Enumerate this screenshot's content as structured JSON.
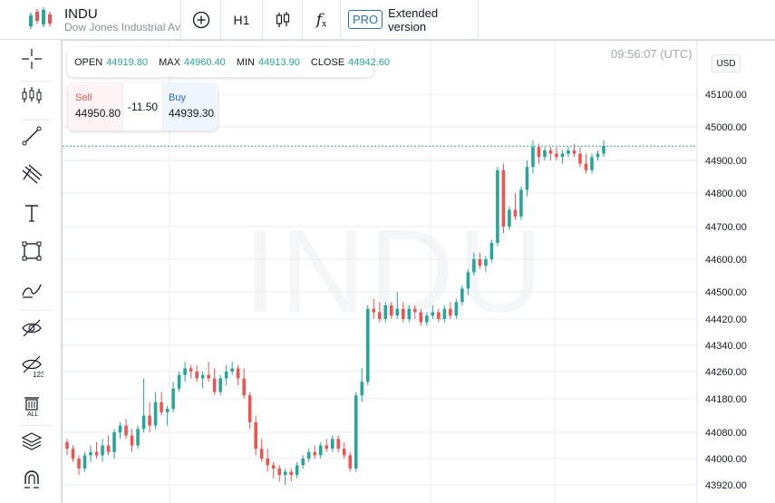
{
  "symbol": {
    "name": "INDU",
    "description": "Dow Jones Industrial Ave"
  },
  "toolbar": {
    "interval": "H1",
    "indicators_label": "f",
    "pro_badge": "PRO",
    "extended_label": "Extended version"
  },
  "left_toolbar": [
    "crosshair-icon",
    "indicator-icon",
    "trend-line-icon",
    "pitchfork-icon",
    "text-icon",
    "rectangle-icon",
    "brush-icon",
    "hide-drawings-icon",
    "hide-indicators-icon",
    "remove-all-icon",
    "layers-icon",
    "magnet-icon"
  ],
  "ohlc": {
    "open_label": "OPEN",
    "open": "44919.80",
    "max_label": "MAX",
    "max": "44960.40",
    "min_label": "MIN",
    "min": "44913.90",
    "close_label": "CLOSE",
    "close": "44942.60"
  },
  "trade": {
    "sell_label": "Sell",
    "sell_price": "44950.80",
    "spread": "-11.50",
    "buy_label": "Buy",
    "buy_price": "44939.30"
  },
  "timestamp": "09:56:07 (UTC)",
  "watermark": "INDU",
  "currency": "USD",
  "colors": {
    "up": "#26a69a",
    "down": "#ef5350",
    "grid": "#e9ebf0",
    "price_line": "#26a69a"
  },
  "chart_data": {
    "type": "candlestick",
    "y_ticks": [
      "45100.00",
      "45000.00",
      "44900.00",
      "44800.00",
      "44700.00",
      "44600.00",
      "44500.00",
      "44420.00",
      "44340.00",
      "44260.00",
      "44180.00",
      "44080.00",
      "44000.00",
      "43920.00"
    ],
    "y_tick_values": [
      45100,
      45000,
      44900,
      44800,
      44700,
      44600,
      44500,
      44420,
      44340,
      44260,
      44180,
      44080,
      44000,
      43920
    ],
    "current_price": 44942.6,
    "candles": [
      [
        44050,
        44060,
        44010,
        44030
      ],
      [
        44030,
        44040,
        43990,
        44000
      ],
      [
        44000,
        44010,
        43950,
        43970
      ],
      [
        43970,
        44020,
        43960,
        44010
      ],
      [
        44010,
        44040,
        43990,
        44020
      ],
      [
        44020,
        44050,
        44000,
        44010
      ],
      [
        44010,
        44060,
        43990,
        44040
      ],
      [
        44040,
        44070,
        44010,
        44020
      ],
      [
        44020,
        44090,
        44000,
        44080
      ],
      [
        44080,
        44110,
        44060,
        44100
      ],
      [
        44100,
        44120,
        44060,
        44070
      ],
      [
        44070,
        44090,
        44020,
        44040
      ],
      [
        44040,
        44100,
        44030,
        44090
      ],
      [
        44090,
        44240,
        44080,
        44130
      ],
      [
        44130,
        44170,
        44080,
        44100
      ],
      [
        44100,
        44200,
        44090,
        44170
      ],
      [
        44170,
        44200,
        44130,
        44140
      ],
      [
        44140,
        44160,
        44100,
        44150
      ],
      [
        44150,
        44230,
        44140,
        44210
      ],
      [
        44210,
        44260,
        44200,
        44250
      ],
      [
        44250,
        44290,
        44230,
        44270
      ],
      [
        44270,
        44280,
        44240,
        44260
      ],
      [
        44260,
        44280,
        44230,
        44240
      ],
      [
        44240,
        44260,
        44210,
        44250
      ],
      [
        44250,
        44290,
        44230,
        44240
      ],
      [
        44240,
        44270,
        44190,
        44200
      ],
      [
        44200,
        44250,
        44190,
        44240
      ],
      [
        44240,
        44280,
        44220,
        44260
      ],
      [
        44260,
        44290,
        44250,
        44270
      ],
      [
        44270,
        44280,
        44220,
        44240
      ],
      [
        44240,
        44270,
        44180,
        44190
      ],
      [
        44190,
        44200,
        44090,
        44110
      ],
      [
        44110,
        44130,
        44010,
        44030
      ],
      [
        44030,
        44060,
        43990,
        44000
      ],
      [
        44000,
        44030,
        43960,
        43980
      ],
      [
        43980,
        43990,
        43940,
        43970
      ],
      [
        43970,
        43980,
        43930,
        43950
      ],
      [
        43950,
        43970,
        43920,
        43960
      ],
      [
        43960,
        43970,
        43930,
        43950
      ],
      [
        43950,
        43990,
        43940,
        43980
      ],
      [
        43980,
        44010,
        43970,
        44000
      ],
      [
        44000,
        44030,
        43990,
        44020
      ],
      [
        44020,
        44040,
        44000,
        44010
      ],
      [
        44010,
        44050,
        44000,
        44040
      ],
      [
        44040,
        44060,
        44020,
        44030
      ],
      [
        44030,
        44070,
        44020,
        44060
      ],
      [
        44060,
        44070,
        44020,
        44030
      ],
      [
        44030,
        44050,
        44000,
        44010
      ],
      [
        44010,
        44020,
        43960,
        43970
      ],
      [
        43970,
        44200,
        43960,
        44190
      ],
      [
        44190,
        44270,
        44170,
        44230
      ],
      [
        44230,
        44460,
        44220,
        44450
      ],
      [
        44450,
        44480,
        44420,
        44440
      ],
      [
        44440,
        44470,
        44410,
        44420
      ],
      [
        44420,
        44470,
        44410,
        44460
      ],
      [
        44460,
        44470,
        44420,
        44430
      ],
      [
        44430,
        44500,
        44420,
        44450
      ],
      [
        44450,
        44470,
        44410,
        44420
      ],
      [
        44420,
        44460,
        44410,
        44450
      ],
      [
        44450,
        44460,
        44420,
        44440
      ],
      [
        44440,
        44450,
        44400,
        44410
      ],
      [
        44410,
        44440,
        44400,
        44430
      ],
      [
        44430,
        44460,
        44420,
        44440
      ],
      [
        44440,
        44450,
        44410,
        44420
      ],
      [
        44420,
        44460,
        44410,
        44450
      ],
      [
        44450,
        44470,
        44420,
        44430
      ],
      [
        44430,
        44480,
        44420,
        44470
      ],
      [
        44470,
        44520,
        44460,
        44510
      ],
      [
        44510,
        44570,
        44490,
        44560
      ],
      [
        44560,
        44620,
        44550,
        44600
      ],
      [
        44600,
        44620,
        44570,
        44580
      ],
      [
        44580,
        44610,
        44560,
        44600
      ],
      [
        44600,
        44660,
        44590,
        44650
      ],
      [
        44650,
        44880,
        44640,
        44870
      ],
      [
        44870,
        44890,
        44680,
        44700
      ],
      [
        44700,
        44760,
        44690,
        44750
      ],
      [
        44750,
        44800,
        44720,
        44730
      ],
      [
        44730,
        44820,
        44720,
        44810
      ],
      [
        44810,
        44900,
        44790,
        44880
      ],
      [
        44880,
        44960,
        44860,
        44940
      ],
      [
        44940,
        44950,
        44890,
        44910
      ],
      [
        44910,
        44940,
        44900,
        44930
      ],
      [
        44930,
        44940,
        44900,
        44920
      ],
      [
        44920,
        44940,
        44900,
        44910
      ],
      [
        44910,
        44930,
        44890,
        44920
      ],
      [
        44920,
        44940,
        44910,
        44930
      ],
      [
        44930,
        44950,
        44910,
        44920
      ],
      [
        44920,
        44940,
        44880,
        44890
      ],
      [
        44890,
        44920,
        44860,
        44870
      ],
      [
        44870,
        44920,
        44860,
        44910
      ],
      [
        44910,
        44930,
        44900,
        44920
      ],
      [
        44920,
        44960,
        44910,
        44943
      ]
    ]
  }
}
